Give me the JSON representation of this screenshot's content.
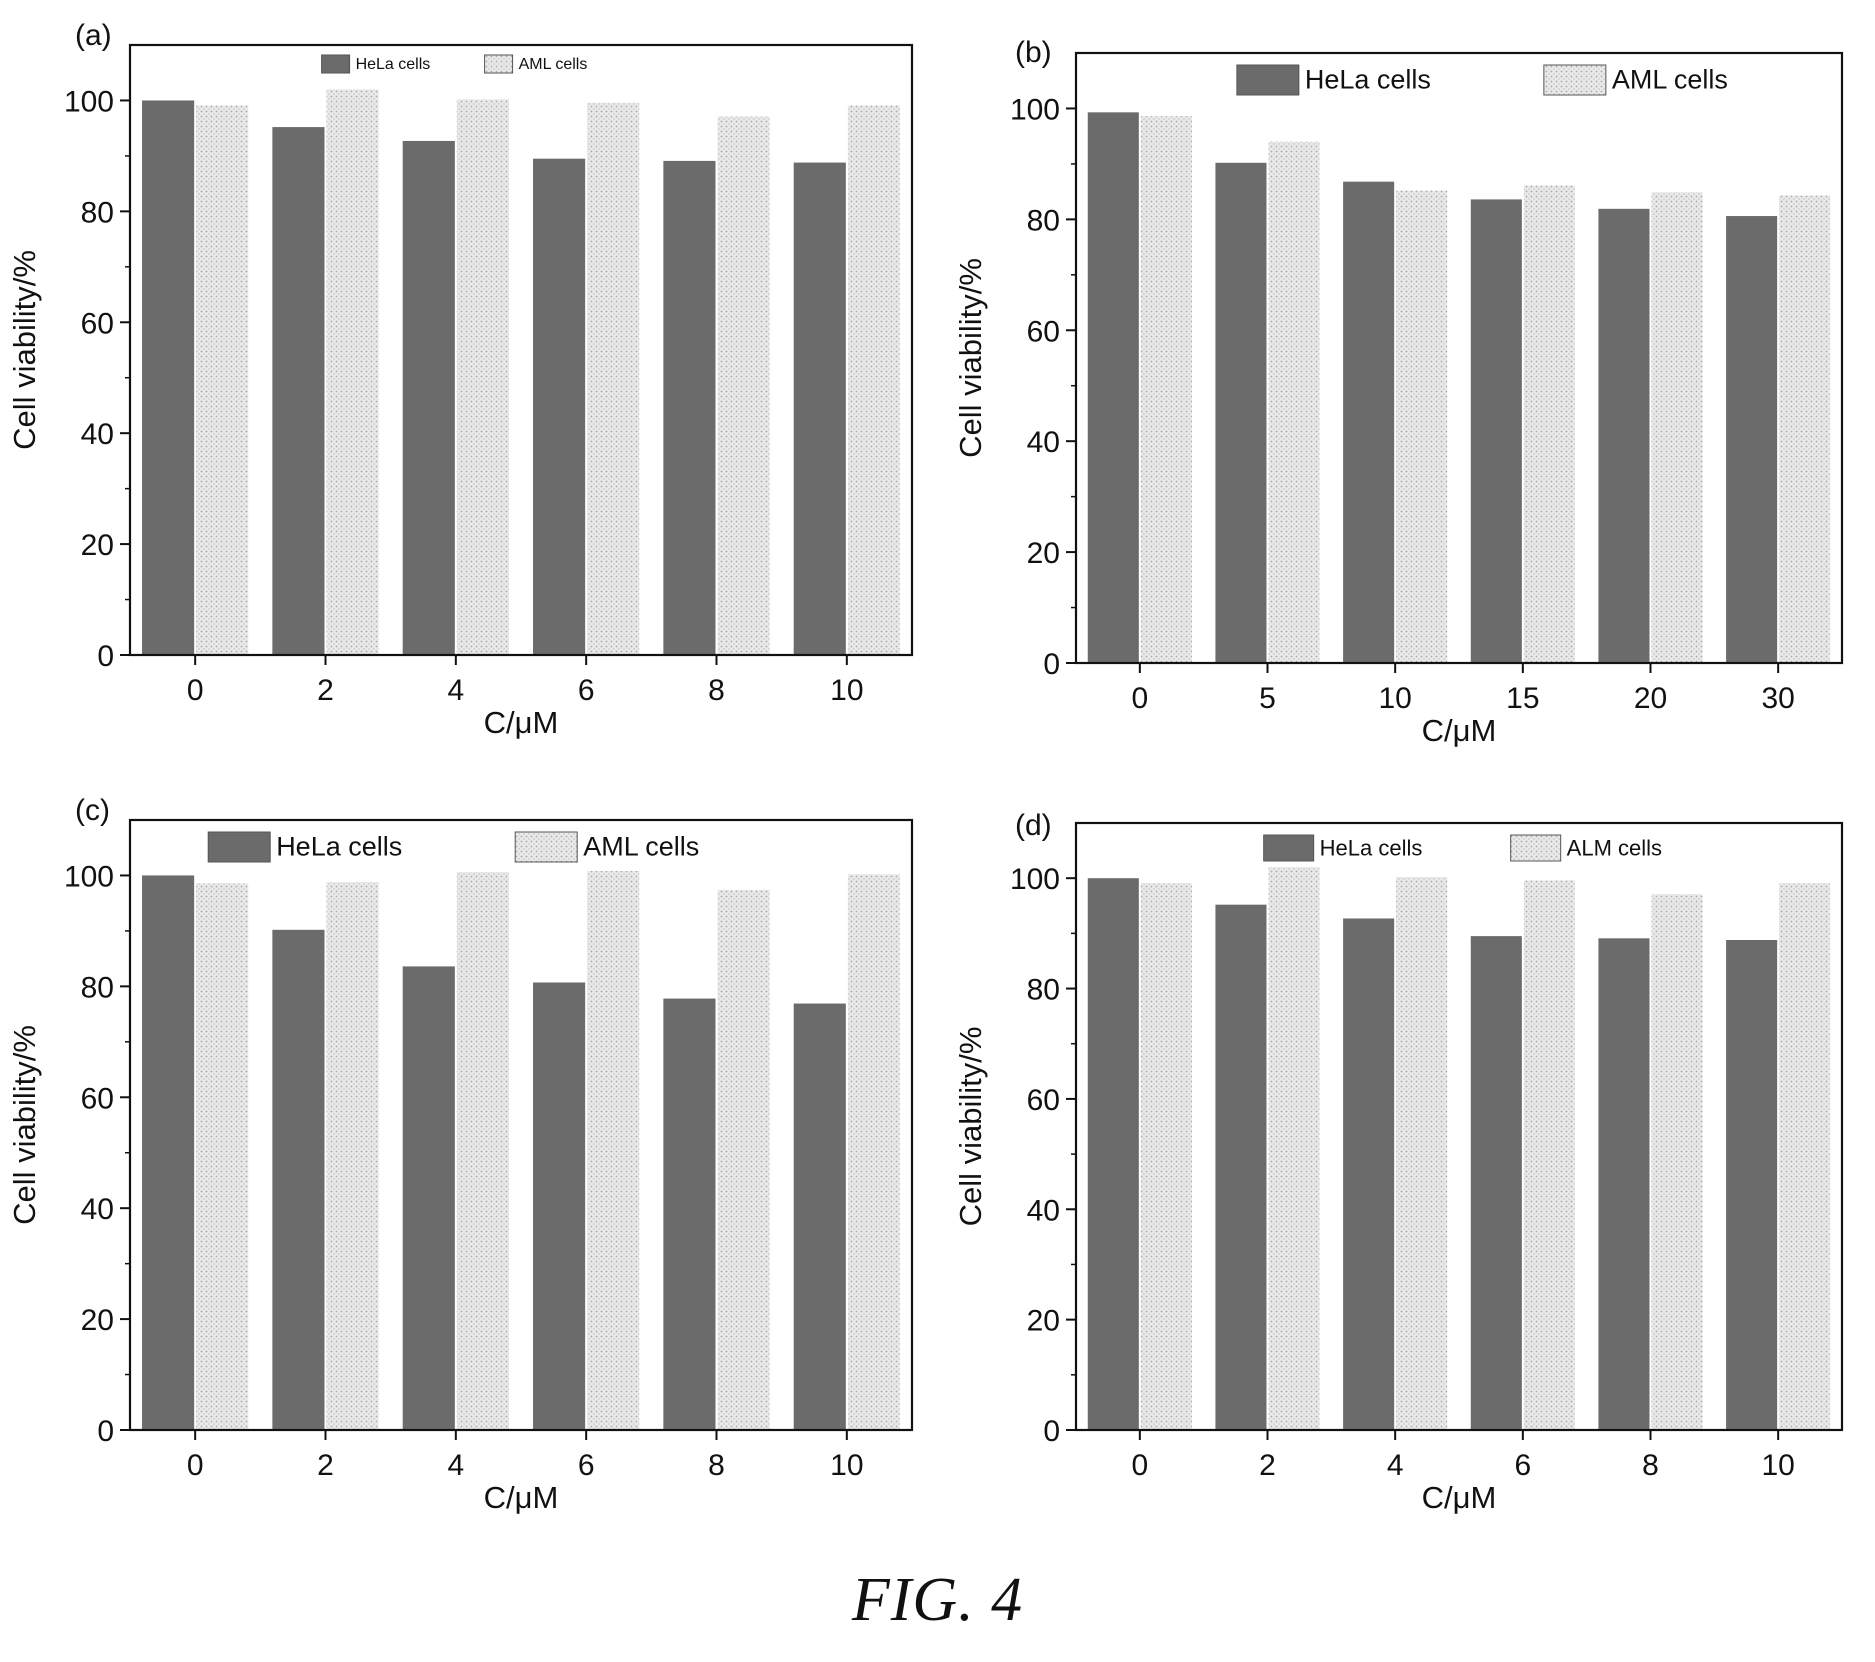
{
  "figure_caption": "FIG. 4",
  "colors": {
    "hela": "#6b6b6b",
    "aml": "#e6e6e6",
    "aml_dot": "#b3b3b3",
    "axis": "#111111"
  },
  "chart_data": [
    {
      "panel": "(a)",
      "type": "bar",
      "categories": [
        "0",
        "2",
        "4",
        "6",
        "8",
        "10"
      ],
      "series": [
        {
          "name": "HeLa cells",
          "values": [
            100,
            95.2,
            92.7,
            89.5,
            89.1,
            88.8
          ]
        },
        {
          "name": "AML cells",
          "values": [
            99.1,
            102.0,
            100.2,
            99.6,
            97.1,
            99.1
          ]
        }
      ],
      "xlabel": "C/μM",
      "ylabel": "Cell viability/%",
      "ylim": [
        0,
        110
      ],
      "yticks": [
        0,
        20,
        40,
        60,
        80,
        100
      ],
      "legend": "top-center",
      "legend_size": "small"
    },
    {
      "panel": "(b)",
      "type": "bar",
      "categories": [
        "0",
        "5",
        "10",
        "15",
        "20",
        "30"
      ],
      "series": [
        {
          "name": "HeLa cells",
          "values": [
            99.3,
            90.2,
            86.8,
            83.6,
            81.9,
            80.6
          ]
        },
        {
          "name": "AML cells",
          "values": [
            98.6,
            94.0,
            85.2,
            86.1,
            84.9,
            84.3
          ]
        }
      ],
      "xlabel": "C/μM",
      "ylabel": "Cell viability/%",
      "ylim": [
        0,
        110
      ],
      "yticks": [
        0,
        20,
        40,
        60,
        80,
        100
      ],
      "legend": "top-center",
      "legend_size": "large"
    },
    {
      "panel": "(c)",
      "type": "bar",
      "categories": [
        "0",
        "2",
        "4",
        "6",
        "8",
        "10"
      ],
      "series": [
        {
          "name": "HeLa cells",
          "values": [
            100,
            90.2,
            83.6,
            80.7,
            77.8,
            76.9
          ]
        },
        {
          "name": "AML cells",
          "values": [
            98.6,
            98.8,
            100.6,
            100.8,
            97.4,
            100.2
          ]
        }
      ],
      "xlabel": "C/μM",
      "ylabel": "Cell viability/%",
      "ylim": [
        0,
        110
      ],
      "yticks": [
        0,
        20,
        40,
        60,
        80,
        100
      ],
      "legend": "top-center",
      "legend_size": "large"
    },
    {
      "panel": "(d)",
      "type": "bar",
      "categories": [
        "0",
        "2",
        "4",
        "6",
        "8",
        "10"
      ],
      "series": [
        {
          "name": "HeLa cells",
          "values": [
            100,
            95.2,
            92.7,
            89.5,
            89.1,
            88.8
          ]
        },
        {
          "name": "ALM cells",
          "values": [
            99.1,
            102.0,
            100.2,
            99.6,
            97.1,
            99.1
          ]
        }
      ],
      "xlabel": "C/μM",
      "ylabel": "Cell viability/%",
      "ylim": [
        0,
        110
      ],
      "yticks": [
        0,
        20,
        40,
        60,
        80,
        100
      ],
      "legend": "top-center",
      "legend_size": "medium"
    }
  ]
}
